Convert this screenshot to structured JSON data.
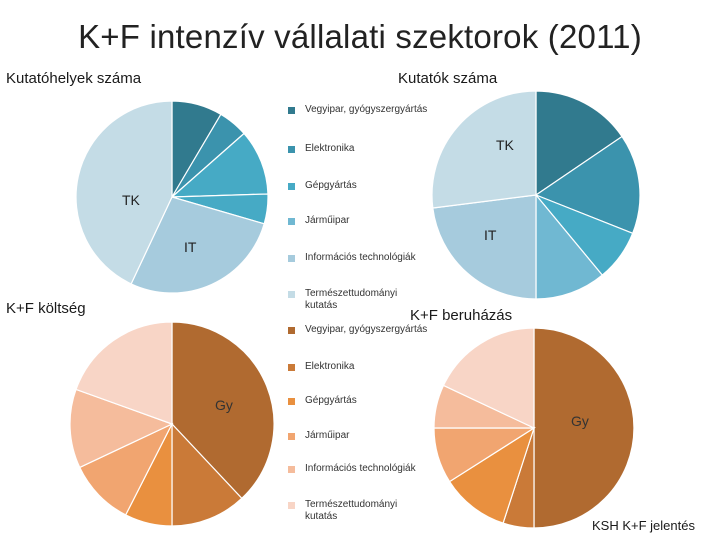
{
  "page": {
    "title": "K+F intenzív vállalati szektorok (2011)",
    "source": "KSH K+F jelentés"
  },
  "labels": {
    "kutatohelyek": "Kutatóhelyek száma",
    "kutatok": "Kutatók száma",
    "koltseg": "K+F költség",
    "beruhazas": "K+F beruházás"
  },
  "colors": {
    "blue": [
      "#317a8e",
      "#3b93ad",
      "#46aac5",
      "#70b8d2",
      "#a6cbdd",
      "#c4dce6"
    ],
    "orange": [
      "#b06a30",
      "#ca7a38",
      "#e9903f",
      "#f1a570",
      "#f5bc9c",
      "#f8d5c6"
    ]
  },
  "legend_top": [
    {
      "label": "Vegyipar, gyógyszergyártás",
      "color": "#317a8e"
    },
    {
      "label": "Elektronika",
      "color": "#3b93ad"
    },
    {
      "label": "Gépgyártás",
      "color": "#46aac5"
    },
    {
      "label": "Járműipar",
      "color": "#70b8d2"
    },
    {
      "label": "Információs technológiák",
      "color": "#a6cbdd"
    },
    {
      "label": "Természettudományi kutatás",
      "color": "#c4dce6"
    }
  ],
  "legend_bottom": [
    {
      "label": "Vegyipar, gyógyszergyártás",
      "color": "#b06a30"
    },
    {
      "label": "Elektronika",
      "color": "#ca7a38"
    },
    {
      "label": "Gépgyártás",
      "color": "#e9903f"
    },
    {
      "label": "Járműipar",
      "color": "#f1a570"
    },
    {
      "label": "Információs technológiák",
      "color": "#f5bc9c"
    },
    {
      "label": "Természettudományi kutatás",
      "color": "#f8d5c6"
    }
  ],
  "chart_data": [
    {
      "type": "pie",
      "title": "Kutatóhelyek száma",
      "slice_labels": {
        "TK": "TK",
        "IT": "IT"
      },
      "slices": [
        {
          "name": "Vegyipar, gyógyszergyártás",
          "value": 8.5,
          "color": "#317a8e"
        },
        {
          "name": "",
          "value": 5.0,
          "color": "#3b93ad"
        },
        {
          "name": "Elektronika / Gépgyártás",
          "value": 11.0,
          "color": "#46aac5"
        },
        {
          "name": "Járműipar",
          "value": 5.0,
          "color": "#46aac5"
        },
        {
          "name": "Információs technológiák",
          "value": 27.5,
          "color": "#a6cbdd"
        },
        {
          "name": "Természettudományi kutatás",
          "value": 43.0,
          "color": "#c4dce6"
        }
      ],
      "annotations": [
        "TK",
        "IT"
      ]
    },
    {
      "type": "pie",
      "title": "Kutatók száma",
      "slices": [
        {
          "name": "Vegyipar, gyógyszergyártás",
          "value": 15.5,
          "color": "#317a8e"
        },
        {
          "name": "Elektronika",
          "value": 15.5,
          "color": "#3b93ad"
        },
        {
          "name": "Gépgyártás",
          "value": 8.0,
          "color": "#46aac5"
        },
        {
          "name": "Járműipar",
          "value": 11.0,
          "color": "#70b8d2"
        },
        {
          "name": "Információs technológiák",
          "value": 23.0,
          "color": "#a6cbdd"
        },
        {
          "name": "Természettudományi kutatás",
          "value": 27.0,
          "color": "#c4dce6"
        }
      ],
      "annotations": [
        "TK",
        "IT"
      ]
    },
    {
      "type": "pie",
      "title": "K+F költség",
      "slices": [
        {
          "name": "Vegyipar, gyógyszergyártás",
          "value": 38.0,
          "color": "#b06a30"
        },
        {
          "name": "Elektronika",
          "value": 12.0,
          "color": "#ca7a38"
        },
        {
          "name": "Gépgyártás",
          "value": 7.5,
          "color": "#e9903f"
        },
        {
          "name": "Járműipar",
          "value": 10.5,
          "color": "#f1a570"
        },
        {
          "name": "Információs technológiák",
          "value": 12.5,
          "color": "#f5bc9c"
        },
        {
          "name": "Természettudományi kutatás",
          "value": 19.5,
          "color": "#f8d5c6"
        }
      ],
      "annotations": [
        "Gy"
      ]
    },
    {
      "type": "pie",
      "title": "K+F beruházás",
      "slices": [
        {
          "name": "Vegyipar, gyógyszergyártás",
          "value": 50.0,
          "color": "#b06a30"
        },
        {
          "name": "Elektronika",
          "value": 5.0,
          "color": "#ca7a38"
        },
        {
          "name": "Gépgyártás",
          "value": 11.0,
          "color": "#e9903f"
        },
        {
          "name": "Járműipar",
          "value": 9.0,
          "color": "#f1a570"
        },
        {
          "name": "Információs technológiák",
          "value": 7.0,
          "color": "#f5bc9c"
        },
        {
          "name": "Természettudományi kutatás",
          "value": 18.0,
          "color": "#f8d5c6"
        }
      ],
      "annotations": [
        "Gy"
      ]
    }
  ]
}
